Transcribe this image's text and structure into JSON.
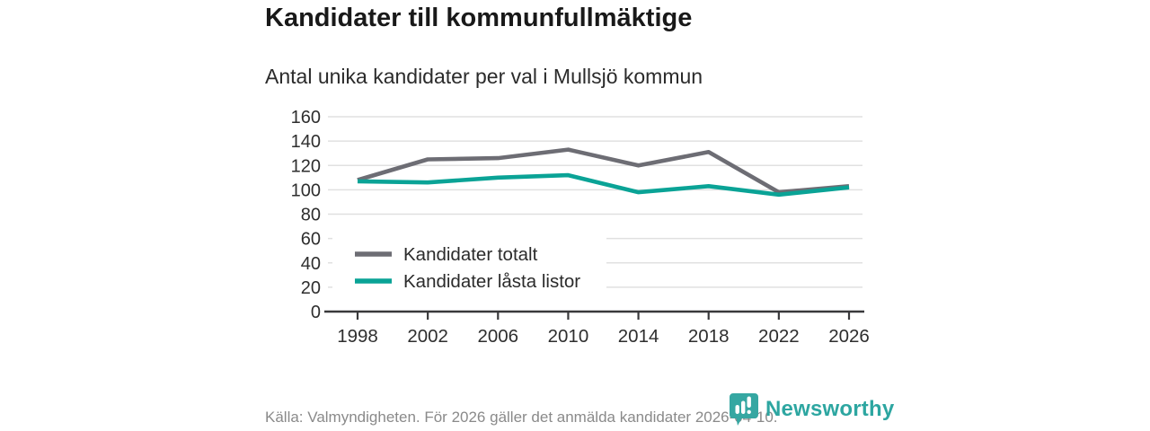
{
  "header": {
    "title": "Kandidater till kommunfullmäktige",
    "subtitle": "Antal unika kandidater per val i Mullsjö kommun"
  },
  "chart_data": {
    "type": "line",
    "categories": [
      "1998",
      "2002",
      "2006",
      "2010",
      "2014",
      "2018",
      "2022",
      "2026"
    ],
    "series": [
      {
        "name": "Kandidater totalt",
        "color": "#6d6d74",
        "values": [
          108,
          125,
          126,
          133,
          120,
          131,
          98,
          103
        ]
      },
      {
        "name": "Kandidater låsta listor",
        "color": "#0aa396",
        "values": [
          107,
          106,
          110,
          112,
          98,
          103,
          96,
          102
        ]
      }
    ],
    "title": "Kandidater till kommunfullmäktige",
    "subtitle": "Antal unika kandidater per val i Mullsjö kommun",
    "xlabel": "",
    "ylabel": "",
    "ylim": [
      0,
      160
    ],
    "ytick_step": 20,
    "grid": true,
    "legend_position": "inside-bottom-left"
  },
  "footer": {
    "source": "Källa: Valmyndigheten. För 2026 gäller det anmälda kandidater 2026-04-10."
  },
  "logo": {
    "brand": "Newsworthy",
    "icon": "newsworthy-speech-bubble-chart-icon"
  },
  "colors": {
    "grid": "#e0e0e0",
    "axis": "#39393b",
    "tick_text": "#2e2e2e",
    "legend_text": "#2b2b2b",
    "source_text": "#8a8a8a",
    "brand_teal": "#2da6a1"
  }
}
